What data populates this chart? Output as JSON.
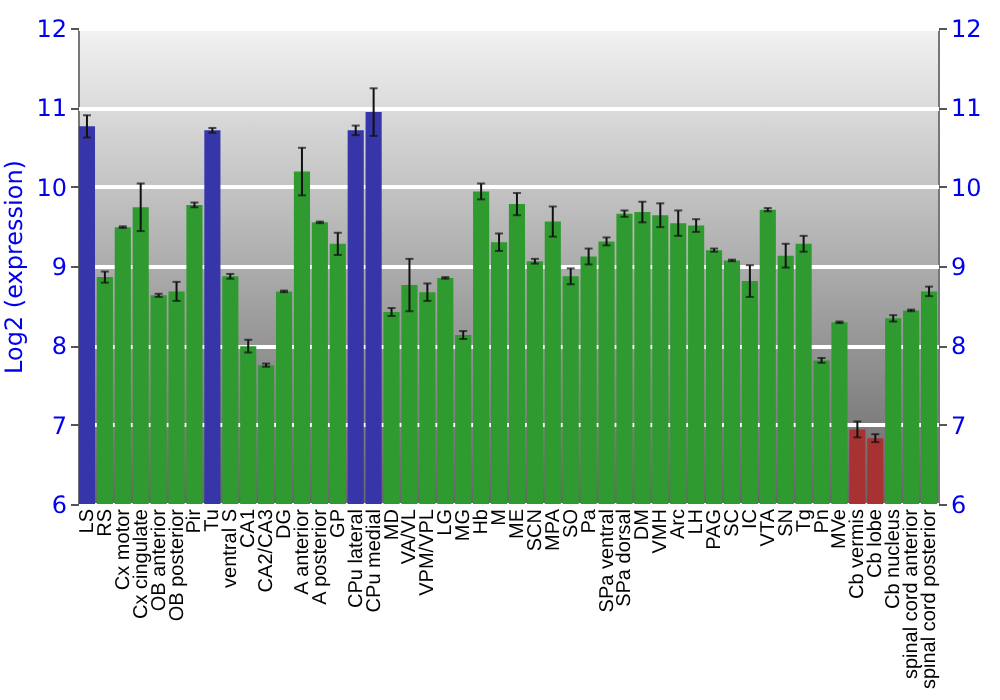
{
  "chart_data": {
    "type": "bar",
    "ylabel": "Log2 (expression)",
    "categories": [
      "LS",
      "RS",
      "Cx motor",
      "Cx cingulate",
      "OB anterior",
      "OB posterior",
      "Pir",
      "Tu",
      "ventral S",
      "CA1",
      "CA2/CA3",
      "DG",
      "A anterior",
      "A posterior",
      "GP",
      "CPu lateral",
      "CPu medial",
      "MD",
      "VA/VL",
      "VPM/VPL",
      "LG",
      "MG",
      "Hb",
      "M",
      "ME",
      "SCN",
      "MPA",
      "SO",
      "Pa",
      "SPa ventral",
      "SPa dorsal",
      "DM",
      "VMH",
      "Arc",
      "LH",
      "PAG",
      "SC",
      "IC",
      "VTA",
      "SN",
      "Tg",
      "Pn",
      "MVe",
      "Cb vermis",
      "Cb lobe",
      "Cb nucleus",
      "spinal cord anterior",
      "spinal cord posterior"
    ],
    "values": [
      10.76,
      8.86,
      9.49,
      9.74,
      8.63,
      8.68,
      9.77,
      10.71,
      8.87,
      7.99,
      7.75,
      8.68,
      10.19,
      9.55,
      9.28,
      10.71,
      10.94,
      8.42,
      8.76,
      8.67,
      8.85,
      8.13,
      9.94,
      9.3,
      9.78,
      9.06,
      9.56,
      8.87,
      9.12,
      9.31,
      9.66,
      9.68,
      9.64,
      9.54,
      9.51,
      9.2,
      9.07,
      8.81,
      9.71,
      9.13,
      9.28,
      7.81,
      8.29,
      6.94,
      6.83,
      8.34,
      8.44,
      8.68
    ],
    "errors": [
      0.14,
      0.07,
      0.01,
      0.3,
      0.02,
      0.12,
      0.03,
      0.03,
      0.03,
      0.08,
      0.02,
      0.01,
      0.3,
      0.01,
      0.14,
      0.06,
      0.3,
      0.05,
      0.33,
      0.11,
      0.01,
      0.05,
      0.1,
      0.11,
      0.14,
      0.03,
      0.19,
      0.1,
      0.1,
      0.05,
      0.04,
      0.13,
      0.15,
      0.16,
      0.08,
      0.02,
      0.01,
      0.2,
      0.02,
      0.15,
      0.1,
      0.03,
      0.01,
      0.1,
      0.05,
      0.04,
      0.01,
      0.06
    ],
    "colors": [
      "#3636a8",
      "#2f9a2f",
      "#2f9a2f",
      "#2f9a2f",
      "#2f9a2f",
      "#2f9a2f",
      "#2f9a2f",
      "#3636a8",
      "#2f9a2f",
      "#2f9a2f",
      "#2f9a2f",
      "#2f9a2f",
      "#2f9a2f",
      "#2f9a2f",
      "#2f9a2f",
      "#3636a8",
      "#3636a8",
      "#2f9a2f",
      "#2f9a2f",
      "#2f9a2f",
      "#2f9a2f",
      "#2f9a2f",
      "#2f9a2f",
      "#2f9a2f",
      "#2f9a2f",
      "#2f9a2f",
      "#2f9a2f",
      "#2f9a2f",
      "#2f9a2f",
      "#2f9a2f",
      "#2f9a2f",
      "#2f9a2f",
      "#2f9a2f",
      "#2f9a2f",
      "#2f9a2f",
      "#2f9a2f",
      "#2f9a2f",
      "#2f9a2f",
      "#2f9a2f",
      "#2f9a2f",
      "#2f9a2f",
      "#2f9a2f",
      "#2f9a2f",
      "#a83232",
      "#a83232",
      "#2f9a2f",
      "#2f9a2f",
      "#2f9a2f"
    ],
    "ylim": [
      6,
      12
    ],
    "yticks": [
      6,
      7,
      8,
      9,
      10,
      11,
      12
    ],
    "y2lim": [
      6,
      12
    ],
    "y2ticks": [
      6,
      7,
      8,
      9,
      10,
      11,
      12
    ],
    "grid": "y"
  }
}
